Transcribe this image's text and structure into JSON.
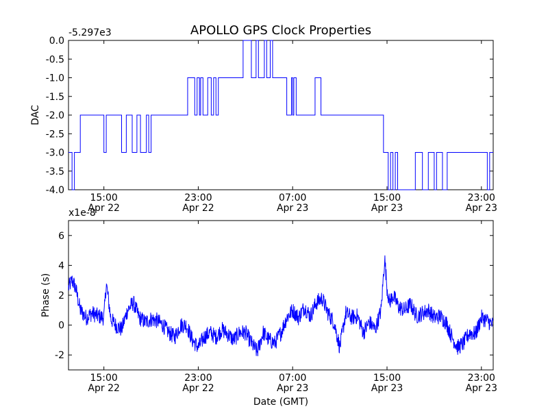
{
  "figure": {
    "title": "APOLLO GPS Clock Properties",
    "xlabel": "Date (GMT)"
  },
  "chart_data": [
    {
      "type": "line",
      "ylabel": "DAC",
      "offset_label": "-5.297e3",
      "ylim": [
        -4.0,
        0.0
      ],
      "yticks": [
        "0.0",
        "-0.5",
        "-1.0",
        "-1.5",
        "-2.0",
        "-2.5",
        "-3.0",
        "-3.5",
        "-4.0"
      ],
      "ytick_values": [
        0.0,
        -0.5,
        -1.0,
        -1.5,
        -2.0,
        -2.5,
        -3.0,
        -3.5,
        -4.0
      ],
      "xlim": [
        0,
        36
      ],
      "xtick_values": [
        3,
        11,
        19,
        27,
        35
      ],
      "xticks": [
        {
          "time": "15:00",
          "date": "Apr 22"
        },
        {
          "time": "23:00",
          "date": "Apr 22"
        },
        {
          "time": "07:00",
          "date": "Apr 23"
        },
        {
          "time": "15:00",
          "date": "Apr 23"
        },
        {
          "time": "23:00",
          "date": "Apr 23"
        }
      ],
      "color": "#0000ff",
      "series": [
        {
          "x": [
            0,
            0.3,
            0.3,
            0.5,
            0.5,
            1.0,
            1.0,
            3.0,
            3.0,
            3.2,
            3.2,
            4.5,
            4.5,
            4.9,
            4.9,
            5.4,
            5.4,
            5.8,
            5.8,
            6.1,
            6.1,
            6.6,
            6.6,
            6.8,
            6.8,
            7.0,
            7.0,
            7.3,
            7.3,
            10.1,
            10.1,
            10.7,
            10.7,
            10.9,
            10.9,
            11.1,
            11.1,
            11.2,
            11.2,
            11.4,
            11.4,
            11.8,
            11.8,
            12.1,
            12.1,
            12.3,
            12.3,
            12.5,
            12.5,
            12.7,
            12.7,
            13.1,
            13.1,
            14.8,
            14.8,
            15.5,
            15.5,
            15.9,
            15.9,
            16.1,
            16.1,
            16.6,
            16.6,
            16.8,
            16.8,
            17.1,
            17.1,
            17.3,
            17.3,
            18.5,
            18.5,
            18.9,
            18.9,
            19.0,
            19.0,
            19.1,
            19.1,
            19.3,
            19.3,
            19.6,
            19.6,
            20.9,
            20.9,
            21.4,
            21.4,
            22.0,
            22.0,
            26.7,
            26.7,
            27.1,
            27.1,
            27.3,
            27.3,
            27.5,
            27.5,
            27.7,
            27.7,
            27.9,
            27.9,
            29.4,
            29.4,
            30.0,
            30.0,
            30.5,
            30.5,
            31.0,
            31.0,
            31.2,
            31.2,
            31.7,
            31.7,
            32.1,
            32.1,
            35.5,
            35.5,
            35.7,
            35.7,
            36.0
          ],
          "y": [
            -3.0,
            -3.0,
            -4.0,
            -4.0,
            -3.0,
            -3.0,
            -2.0,
            -2.0,
            -3.0,
            -3.0,
            -2.0,
            -2.0,
            -3.0,
            -3.0,
            -2.0,
            -2.0,
            -3.0,
            -3.0,
            -2.0,
            -2.0,
            -3.0,
            -3.0,
            -2.0,
            -2.0,
            -3.0,
            -3.0,
            -2.0,
            -2.0,
            -2.0,
            -2.0,
            -1.0,
            -1.0,
            -2.0,
            -2.0,
            -1.0,
            -1.0,
            -2.0,
            -2.0,
            -1.0,
            -1.0,
            -2.0,
            -2.0,
            -1.0,
            -1.0,
            -2.0,
            -2.0,
            -1.0,
            -1.0,
            -2.0,
            -2.0,
            -1.0,
            -1.0,
            -1.0,
            -1.0,
            0.0,
            0.0,
            -1.0,
            -1.0,
            0.0,
            0.0,
            -1.0,
            -1.0,
            0.0,
            0.0,
            -1.0,
            -1.0,
            0.0,
            0.0,
            -1.0,
            -1.0,
            -2.0,
            -2.0,
            -1.0,
            -1.0,
            -2.0,
            -2.0,
            -1.0,
            -1.0,
            -2.0,
            -2.0,
            -2.0,
            -2.0,
            -1.0,
            -1.0,
            -2.0,
            -2.0,
            -2.0,
            -2.0,
            -3.0,
            -3.0,
            -4.0,
            -4.0,
            -3.0,
            -3.0,
            -4.0,
            -4.0,
            -3.0,
            -3.0,
            -4.0,
            -4.0,
            -3.0,
            -3.0,
            -4.0,
            -4.0,
            -3.0,
            -3.0,
            -4.0,
            -4.0,
            -3.0,
            -3.0,
            -4.0,
            -4.0,
            -3.0,
            -3.0,
            -4.0,
            -4.0,
            -3.0,
            -3.0
          ]
        }
      ]
    },
    {
      "type": "line",
      "ylabel": "Phase (s)",
      "offset_label": "x1e-8",
      "ylim": [
        -3.0,
        7.0
      ],
      "yticks": [
        "6",
        "4",
        "2",
        "0",
        "-2"
      ],
      "ytick_values": [
        6,
        4,
        2,
        0,
        -2
      ],
      "xlim": [
        0,
        36
      ],
      "xtick_values": [
        3,
        11,
        19,
        27,
        35
      ],
      "xticks": [
        {
          "time": "15:00",
          "date": "Apr 22"
        },
        {
          "time": "23:00",
          "date": "Apr 22"
        },
        {
          "time": "07:00",
          "date": "Apr 23"
        },
        {
          "time": "15:00",
          "date": "Apr 23"
        },
        {
          "time": "23:00",
          "date": "Apr 23"
        }
      ],
      "color": "#0000ff",
      "series": [
        {
          "x": [
            0,
            0.3,
            0.6,
            1.0,
            1.5,
            2.0,
            2.5,
            3.0,
            3.2,
            3.6,
            4.0,
            4.5,
            5.0,
            5.5,
            6.0,
            6.5,
            7.0,
            7.5,
            8.0,
            8.5,
            9.0,
            9.5,
            10.0,
            10.5,
            11.0,
            11.5,
            12.0,
            12.5,
            13.0,
            13.5,
            14.0,
            14.5,
            15.0,
            15.5,
            16.0,
            16.5,
            17.0,
            17.5,
            18.0,
            18.5,
            19.0,
            19.5,
            20.0,
            20.5,
            21.0,
            21.5,
            22.0,
            22.5,
            23.0,
            23.5,
            24.0,
            24.5,
            25.0,
            25.5,
            26.0,
            26.5,
            26.8,
            27.0,
            27.2,
            27.5,
            28.0,
            28.5,
            29.0,
            29.5,
            30.0,
            30.5,
            31.0,
            31.5,
            32.0,
            32.5,
            33.0,
            33.5,
            34.0,
            34.5,
            35.0,
            35.5,
            36.0
          ],
          "y": [
            2.5,
            3.0,
            2.5,
            1.0,
            0.5,
            0.8,
            0.6,
            0.5,
            2.8,
            0.4,
            0.0,
            -0.3,
            1.0,
            1.5,
            0.5,
            0.2,
            0.4,
            0.3,
            0.0,
            -0.5,
            -0.8,
            0.0,
            0.0,
            -1.0,
            -1.5,
            -0.8,
            -0.5,
            -0.8,
            -0.3,
            -0.6,
            -1.0,
            -0.5,
            -0.5,
            -1.2,
            -1.8,
            -0.5,
            -1.0,
            -1.2,
            -0.5,
            0.5,
            1.0,
            0.5,
            1.2,
            0.6,
            1.5,
            1.8,
            0.8,
            0.2,
            -1.5,
            0.8,
            0.5,
            0.6,
            -0.5,
            0.2,
            -0.3,
            1.0,
            4.5,
            2.5,
            1.5,
            2.0,
            1.2,
            1.0,
            1.4,
            0.6,
            0.8,
            1.0,
            0.5,
            0.6,
            0.2,
            -0.8,
            -1.5,
            -1.2,
            -0.5,
            -0.6,
            0.5,
            0.3,
            0.0
          ]
        }
      ]
    }
  ]
}
